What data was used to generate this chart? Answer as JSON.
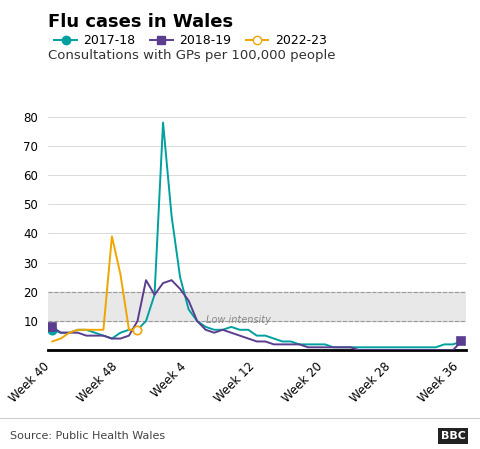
{
  "title": "Flu cases in Wales",
  "subtitle": "Consultations with GPs per 100,000 people",
  "source": "Source: Public Health Wales",
  "bbc_label": "BBC",
  "ylim": [
    0,
    80
  ],
  "yticks": [
    0,
    10,
    20,
    30,
    40,
    50,
    60,
    70,
    80
  ],
  "xtick_labels": [
    "Week 40",
    "Week 48",
    "Week 4",
    "Week 12",
    "Week 20",
    "Week 28",
    "Week 36"
  ],
  "xtick_positions": [
    0,
    8,
    16,
    24,
    32,
    40,
    48
  ],
  "low_intensity_label": "Low intensity",
  "low_intensity_y": 10.5,
  "low_intensity_x": 18,
  "band_ymin": 10,
  "band_ymax": 20,
  "series": {
    "2017-18": {
      "color": "#00a0a0",
      "marker": "o",
      "marker_filled": true,
      "marker_indices": [
        0
      ],
      "values": [
        7,
        6,
        6,
        7,
        7,
        6,
        5,
        4,
        6,
        7,
        7,
        10,
        19,
        78,
        46,
        25,
        14,
        10,
        8,
        7,
        7,
        8,
        7,
        7,
        5,
        5,
        4,
        3,
        3,
        2,
        2,
        2,
        2,
        1,
        1,
        1,
        1,
        1,
        1,
        1,
        1,
        1,
        1,
        1,
        1,
        1,
        2,
        2,
        3
      ]
    },
    "2018-19": {
      "color": "#5b3d8f",
      "marker": "s",
      "marker_filled": true,
      "marker_indices": [
        0,
        48
      ],
      "values": [
        8,
        6,
        6,
        6,
        5,
        5,
        5,
        4,
        4,
        5,
        10,
        24,
        19,
        23,
        24,
        21,
        17,
        10,
        7,
        6,
        7,
        6,
        5,
        4,
        3,
        3,
        2,
        2,
        2,
        2,
        1,
        1,
        1,
        1,
        1,
        1,
        0,
        0,
        0,
        0,
        0,
        0,
        0,
        0,
        0,
        0,
        0,
        0,
        3
      ]
    },
    "2022-23": {
      "color": "#f0a500",
      "marker": "o",
      "marker_filled": false,
      "marker_indices": [
        10
      ],
      "values": [
        3,
        4,
        6,
        7,
        7,
        7,
        7,
        39,
        26,
        7,
        7,
        null,
        null,
        null,
        null,
        null,
        null,
        null,
        null,
        null,
        null,
        null,
        null,
        null,
        null,
        null,
        null,
        null,
        null,
        null,
        null,
        null,
        null,
        null,
        null,
        null,
        null,
        null,
        null,
        null,
        null,
        null,
        null,
        null,
        null,
        null,
        null,
        null,
        null
      ]
    }
  },
  "background_color": "#ffffff",
  "band_color": "#e8e8e8",
  "grid_color": "#cccccc",
  "axis_line_color": "#000000",
  "title_fontsize": 13,
  "subtitle_fontsize": 9.5,
  "tick_fontsize": 8.5,
  "legend_fontsize": 9
}
